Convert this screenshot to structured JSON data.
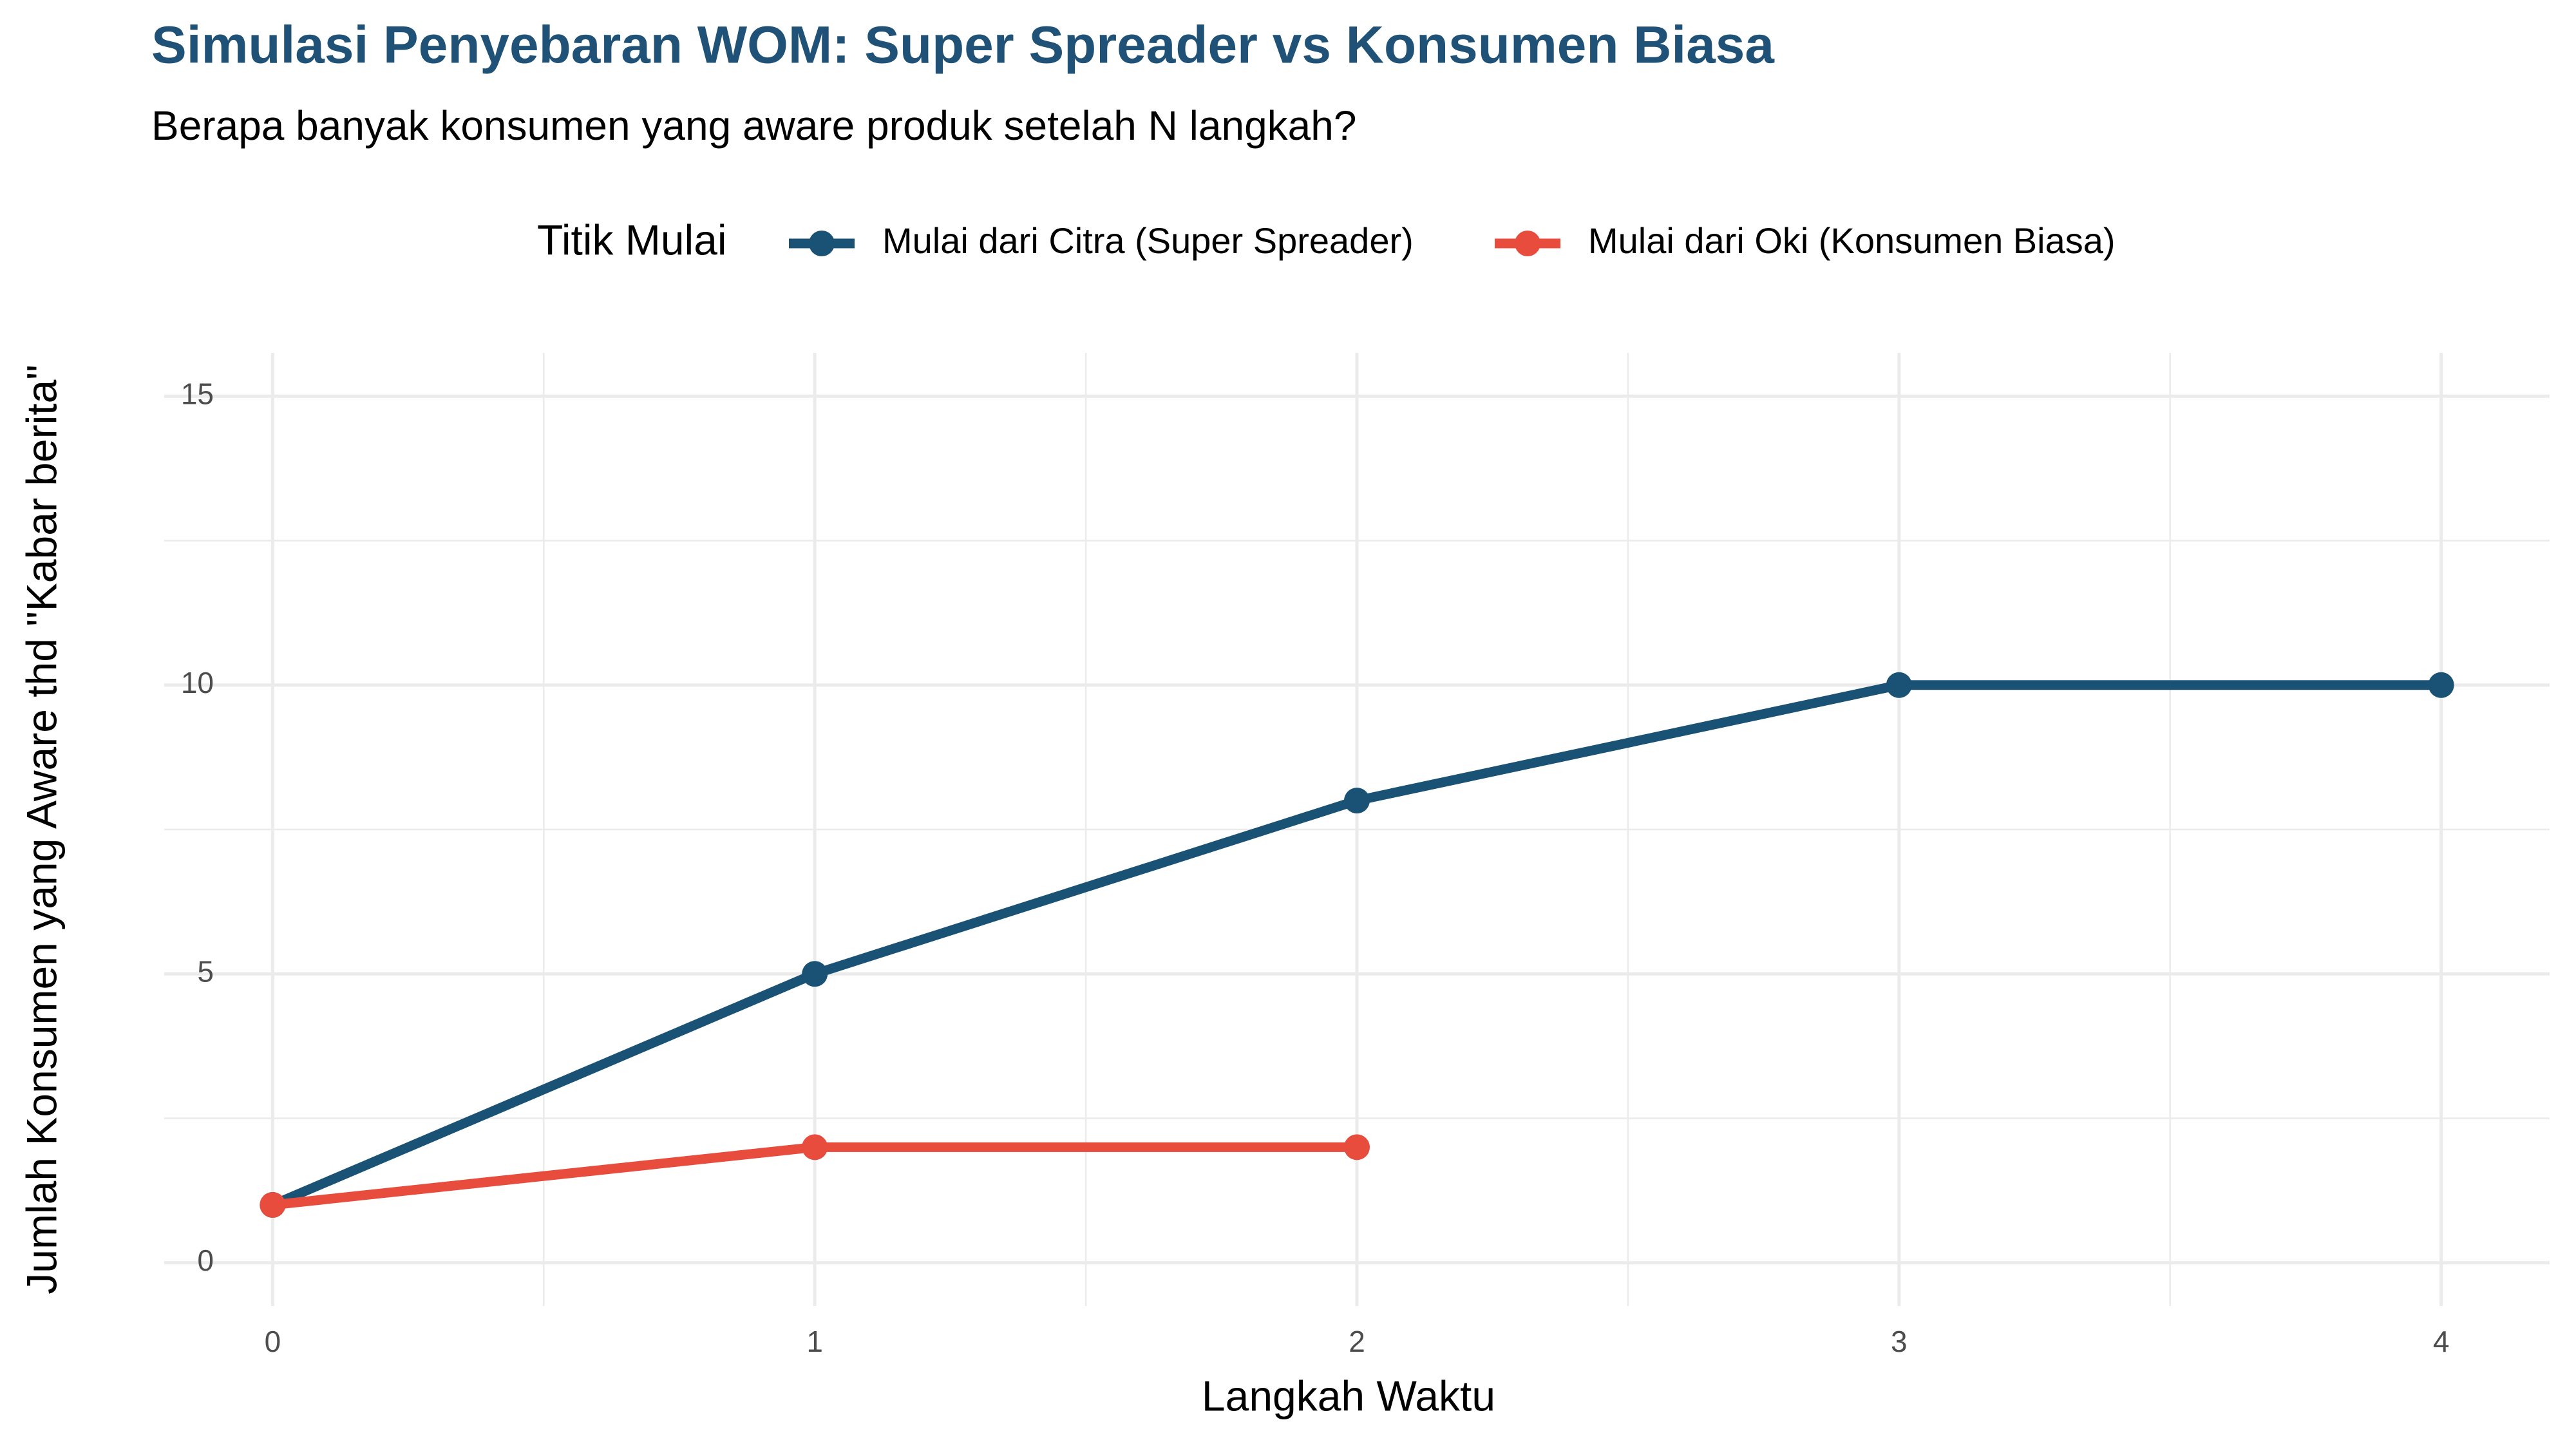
{
  "chart_data": {
    "type": "line",
    "title": "Simulasi Penyebaran WOM: Super Spreader vs Konsumen Biasa",
    "subtitle": "Berapa banyak konsumen yang aware produk setelah N langkah?",
    "x_label": "Langkah Waktu",
    "y_label": "Jumlah Konsumen yang Aware thd \"Kabar berita\"",
    "legend_title": "Titik Mulai",
    "legend_position": "top",
    "grid": true,
    "x": [
      0,
      1,
      2,
      3,
      4
    ],
    "series": [
      {
        "name": "Mulai dari Citra (Super Spreader)",
        "color": "#1a5276",
        "values": [
          1,
          5,
          8,
          10,
          10
        ]
      },
      {
        "name": "Mulai dari Oki (Konsumen Biasa)",
        "color": "#e74c3c",
        "values": [
          1,
          2,
          2,
          null,
          null
        ]
      }
    ],
    "xlim": [
      -0.2,
      4.2
    ],
    "xticks": [
      0,
      1,
      2,
      3,
      4
    ],
    "ylim": [
      -0.75,
      15.75
    ],
    "yticks": [
      0,
      5,
      10,
      15
    ]
  }
}
